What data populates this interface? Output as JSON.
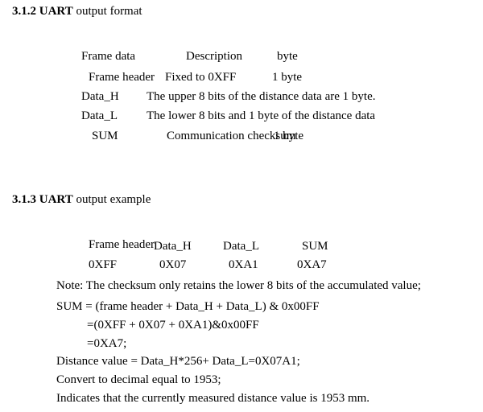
{
  "section_312": {
    "number": "3.1.2",
    "bold_word": "UART",
    "rest": " output format"
  },
  "format_table": {
    "headers": [
      "Frame data",
      "Description",
      "byte"
    ],
    "rows": [
      [
        "Frame header",
        "Fixed to 0XFF",
        "1 byte"
      ],
      [
        "Data_H",
        "The upper 8 bits of the distance data are 1 byte.",
        ""
      ],
      [
        "Data_L",
        "The lower 8 bits and 1 byte of the distance data",
        ""
      ],
      [
        "SUM",
        "Communication checksum",
        "1 byte"
      ]
    ]
  },
  "section_313": {
    "number": "3.1.3",
    "bold_word": "UART",
    "rest": " output example"
  },
  "example_table": {
    "headers": [
      "Frame header",
      "Data_H",
      "Data_L",
      "SUM"
    ],
    "values": [
      "0XFF",
      "0X07",
      "0XA1",
      "0XA7"
    ]
  },
  "notes": [
    "Note: The checksum only retains the lower 8 bits of the accumulated value;",
    "SUM = (frame header + Data_H + Data_L) & 0x00FF",
    "=(0XFF + 0X07 + 0XA1)&0x00FF",
    "=0XA7;",
    "Distance value = Data_H*256+ Data_L=0X07A1;",
    "Convert to decimal equal to 1953;",
    "Indicates that the currently measured distance value is 1953 mm."
  ]
}
